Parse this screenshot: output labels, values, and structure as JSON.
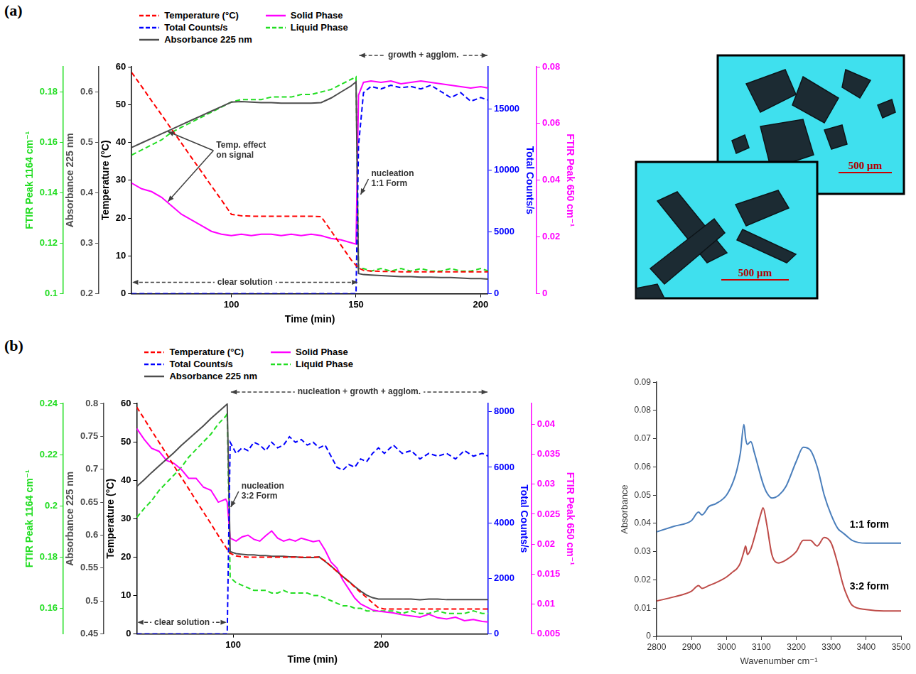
{
  "panel_labels": [
    "(a)",
    "(b)"
  ],
  "micrographs": [
    {
      "scale_bar": "500 µm"
    },
    {
      "scale_bar": "500 µm"
    }
  ],
  "chart_data": [
    {
      "type": "line",
      "legend": "top",
      "grid": false,
      "x_label": "Time (min)",
      "x": [
        60,
        64,
        68,
        72,
        76,
        80,
        84,
        88,
        92,
        96,
        100,
        104,
        108,
        112,
        116,
        120,
        124,
        128,
        132,
        136,
        140,
        144,
        148,
        150,
        151,
        153,
        156,
        160,
        164,
        168,
        172,
        176,
        180,
        184,
        188,
        192,
        196,
        200,
        203
      ],
      "xlim": [
        60,
        203
      ],
      "xticks": [
        100,
        150,
        200
      ],
      "y_label": "Temperature (°C)",
      "ylim": [
        0,
        60
      ],
      "yticks": [
        0,
        10,
        20,
        30,
        40,
        50,
        60
      ],
      "y2_label": "Total Counts/s",
      "y2lim": [
        0,
        18400
      ],
      "y2ticks": [
        0,
        5000,
        10000,
        15000
      ],
      "y3_label": "Absorbance 225 nm",
      "y3lim": [
        0.2,
        0.65
      ],
      "y3ticks": [
        0.2,
        0.3,
        0.4,
        0.5,
        0.6
      ],
      "y4_label": "FTIR Peak 1164 cm⁻¹",
      "y4lim": [
        0.1,
        0.19
      ],
      "y4ticks": [
        0.1,
        0.12,
        0.14,
        0.16,
        0.18
      ],
      "y5_label": "FTIR Peak 650 cm⁻¹",
      "y5lim": [
        0,
        0.08
      ],
      "y5ticks": [
        0,
        0.02,
        0.04,
        0.06,
        0.08
      ],
      "series": [
        {
          "name": "Temperature (°C)",
          "color": "#ff0000",
          "line_style": "dashed",
          "axis": "y",
          "values": [
            58.5,
            54.8,
            51.0,
            47.3,
            43.5,
            39.8,
            36.0,
            32.3,
            28.5,
            24.8,
            21.0,
            20.6,
            20.5,
            20.5,
            20.5,
            20.5,
            20.5,
            20.5,
            20.5,
            20.4,
            16.6,
            12.8,
            9.0,
            7.5,
            6.8,
            6.2,
            6.0,
            5.9,
            5.9,
            5.8,
            5.8,
            5.8,
            5.8,
            5.8,
            5.8,
            5.8,
            5.8,
            5.8,
            5.8
          ]
        },
        {
          "name": "Total Counts/s",
          "color": "#0000ff",
          "line_style": "dashed",
          "axis": "y2",
          "values": [
            0,
            0,
            0,
            0,
            0,
            0,
            0,
            0,
            0,
            0,
            0,
            0,
            0,
            0,
            0,
            0,
            0,
            0,
            0,
            0,
            0,
            0,
            0,
            0,
            12000,
            16300,
            16800,
            16600,
            16900,
            16700,
            16800,
            16600,
            16900,
            16400,
            15900,
            16300,
            15600,
            15900,
            15700
          ]
        },
        {
          "name": "Absorbance 225 nm",
          "color": "#4d4d4d",
          "line_style": "solid",
          "axis": "y3",
          "values": [
            0.49,
            0.499,
            0.508,
            0.517,
            0.526,
            0.535,
            0.544,
            0.553,
            0.562,
            0.571,
            0.58,
            0.581,
            0.58,
            0.579,
            0.579,
            0.578,
            0.578,
            0.578,
            0.578,
            0.579,
            0.588,
            0.6,
            0.612,
            0.62,
            0.24,
            0.238,
            0.237,
            0.236,
            0.235,
            0.234,
            0.234,
            0.233,
            0.233,
            0.232,
            0.232,
            0.231,
            0.23,
            0.23,
            0.229
          ]
        },
        {
          "name": "Solid Phase",
          "color": "#ff00ff",
          "line_style": "solid",
          "axis": "y5",
          "values": [
            0.039,
            0.037,
            0.036,
            0.034,
            0.031,
            0.028,
            0.026,
            0.024,
            0.022,
            0.021,
            0.0205,
            0.021,
            0.0205,
            0.021,
            0.021,
            0.0205,
            0.021,
            0.0205,
            0.021,
            0.0205,
            0.0195,
            0.019,
            0.018,
            0.0175,
            0.07,
            0.0745,
            0.075,
            0.0745,
            0.075,
            0.074,
            0.0745,
            0.075,
            0.0745,
            0.074,
            0.0735,
            0.073,
            0.0725,
            0.073,
            0.0725
          ]
        },
        {
          "name": "Liquid Phase",
          "color": "#22dd22",
          "line_style": "dashed",
          "axis": "y4",
          "values": [
            0.155,
            0.157,
            0.159,
            0.161,
            0.164,
            0.166,
            0.168,
            0.17,
            0.172,
            0.174,
            0.176,
            0.177,
            0.177,
            0.177,
            0.178,
            0.178,
            0.178,
            0.179,
            0.179,
            0.18,
            0.181,
            0.183,
            0.185,
            0.186,
            0.11,
            0.11,
            0.109,
            0.11,
            0.109,
            0.11,
            0.109,
            0.11,
            0.109,
            0.109,
            0.11,
            0.109,
            0.109,
            0.11,
            0.109
          ]
        }
      ],
      "annotations": [
        {
          "text": "Temp. effect on signal",
          "x": 74,
          "points_to": [
            "Absorbance 225 nm",
            "Solid Phase"
          ]
        },
        {
          "text": "clear solution",
          "x_range": [
            60,
            151
          ]
        },
        {
          "text": "nucleation 1:1 Form",
          "x": 151
        },
        {
          "text": "growth + agglom.",
          "x_range": [
            151,
            203
          ]
        }
      ]
    },
    {
      "type": "line",
      "legend": "top",
      "grid": false,
      "x_label": "Time (min)",
      "x": [
        35,
        40,
        45,
        50,
        55,
        60,
        65,
        70,
        75,
        80,
        85,
        90,
        95,
        96,
        98,
        102,
        106,
        110,
        114,
        118,
        122,
        126,
        130,
        134,
        138,
        142,
        146,
        150,
        154,
        158,
        162,
        166,
        170,
        174,
        178,
        182,
        186,
        190,
        194,
        198,
        202,
        208,
        214,
        220,
        226,
        232,
        238,
        244,
        250,
        256,
        262,
        268,
        272
      ],
      "xlim": [
        35,
        272
      ],
      "xticks": [
        100,
        200
      ],
      "y_label": "Temperature (°C)",
      "ylim": [
        0,
        60
      ],
      "yticks": [
        0,
        10,
        20,
        30,
        40,
        50,
        60
      ],
      "y2_label": "Total Counts/s",
      "y2lim": [
        0,
        8300
      ],
      "y2ticks": [
        0,
        2000,
        4000,
        6000,
        8000
      ],
      "y3_label": "Absorbance 225 nm",
      "y3lim": [
        0.45,
        0.8
      ],
      "y3ticks": [
        0.45,
        0.5,
        0.55,
        0.6,
        0.65,
        0.7,
        0.75,
        0.8
      ],
      "y4_label": "FTIR Peak 1164 cm⁻¹",
      "y4lim": [
        0.15,
        0.24
      ],
      "y4ticks": [
        0.16,
        0.18,
        0.2,
        0.22,
        0.24
      ],
      "y5_label": "FTIR Peak 650 cm⁻¹",
      "y5lim": [
        0.005,
        0.0435
      ],
      "y5ticks": [
        0.005,
        0.01,
        0.015,
        0.02,
        0.025,
        0.03,
        0.035,
        0.04
      ],
      "series": [
        {
          "name": "Temperature (°C)",
          "color": "#ff0000",
          "line_style": "dashed",
          "axis": "y",
          "values": [
            59.0,
            56.0,
            52.9,
            49.9,
            46.9,
            43.8,
            40.8,
            37.8,
            34.7,
            31.7,
            28.7,
            25.6,
            22.6,
            22.0,
            21.0,
            20.3,
            20.1,
            20.0,
            20.0,
            20.0,
            20.0,
            20.0,
            20.0,
            20.0,
            20.0,
            20.0,
            20.0,
            20.0,
            20.0,
            20.0,
            19.0,
            17.6,
            16.3,
            14.9,
            13.6,
            12.2,
            10.8,
            9.5,
            8.1,
            6.8,
            6.5,
            6.5,
            6.5,
            6.5,
            6.5,
            6.5,
            6.5,
            6.5,
            6.5,
            6.5,
            6.5,
            6.5,
            6.5
          ]
        },
        {
          "name": "Total Counts/s",
          "color": "#0000ff",
          "line_style": "dashed",
          "axis": "y2",
          "values": [
            0,
            0,
            0,
            0,
            0,
            0,
            0,
            0,
            0,
            0,
            0,
            0,
            0,
            0,
            6900,
            6500,
            6700,
            6600,
            6900,
            6800,
            6600,
            6900,
            6700,
            6800,
            7100,
            6900,
            7000,
            6800,
            6900,
            6700,
            6800,
            6400,
            6000,
            5900,
            6100,
            6000,
            6300,
            6200,
            6500,
            6700,
            6500,
            6800,
            6500,
            6600,
            6300,
            6500,
            6400,
            6500,
            6300,
            6600,
            6400,
            6500,
            6400
          ]
        },
        {
          "name": "Absorbance 225 nm",
          "color": "#4d4d4d",
          "line_style": "solid",
          "axis": "y3",
          "values": [
            0.674,
            0.684,
            0.695,
            0.705,
            0.715,
            0.725,
            0.736,
            0.746,
            0.756,
            0.766,
            0.777,
            0.787,
            0.797,
            0.799,
            0.575,
            0.572,
            0.571,
            0.57,
            0.57,
            0.569,
            0.569,
            0.568,
            0.568,
            0.568,
            0.567,
            0.567,
            0.566,
            0.566,
            0.566,
            0.567,
            0.56,
            0.553,
            0.545,
            0.537,
            0.53,
            0.522,
            0.515,
            0.509,
            0.505,
            0.503,
            0.503,
            0.503,
            0.503,
            0.503,
            0.502,
            0.503,
            0.503,
            0.502,
            0.502,
            0.502,
            0.502,
            0.502,
            0.502
          ]
        },
        {
          "name": "Solid Phase",
          "color": "#ff00ff",
          "line_style": "solid",
          "axis": "y5",
          "values": [
            0.0393,
            0.0375,
            0.036,
            0.0355,
            0.034,
            0.0335,
            0.0325,
            0.031,
            0.031,
            0.0295,
            0.029,
            0.027,
            0.0275,
            0.027,
            0.021,
            0.0205,
            0.0212,
            0.0215,
            0.0208,
            0.0205,
            0.0214,
            0.0222,
            0.021,
            0.0205,
            0.0208,
            0.0205,
            0.021,
            0.0207,
            0.0204,
            0.0206,
            0.019,
            0.017,
            0.016,
            0.014,
            0.0125,
            0.011,
            0.01,
            0.0095,
            0.009,
            0.0088,
            0.0087,
            0.0085,
            0.0082,
            0.008,
            0.0078,
            0.0083,
            0.0077,
            0.0075,
            0.0078,
            0.0072,
            0.0074,
            0.0071,
            0.007
          ]
        },
        {
          "name": "Liquid Phase",
          "color": "#22dd22",
          "line_style": "dashed",
          "axis": "y4",
          "values": [
            0.1955,
            0.199,
            0.202,
            0.206,
            0.209,
            0.212,
            0.215,
            0.219,
            0.222,
            0.225,
            0.228,
            0.232,
            0.235,
            0.236,
            0.172,
            0.17,
            0.169,
            0.168,
            0.167,
            0.167,
            0.167,
            0.166,
            0.166,
            0.167,
            0.166,
            0.166,
            0.166,
            0.166,
            0.165,
            0.165,
            0.164,
            0.163,
            0.162,
            0.161,
            0.161,
            0.16,
            0.16,
            0.159,
            0.159,
            0.159,
            0.159,
            0.159,
            0.158,
            0.159,
            0.158,
            0.158,
            0.159,
            0.158,
            0.158,
            0.158,
            0.159,
            0.158,
            0.158
          ]
        }
      ],
      "annotations": [
        {
          "text": "clear solution",
          "x_range": [
            35,
            96
          ]
        },
        {
          "text": "nucleation 3:2 Form",
          "x": 97
        },
        {
          "text": "nucleation + growth + agglom.",
          "x_range": [
            98,
            272
          ]
        }
      ]
    },
    {
      "type": "line",
      "grid": false,
      "x_label": "Wavenumber cm⁻¹",
      "y_label": "Absorbance",
      "x": [
        2800,
        2850,
        2900,
        2920,
        2930,
        2950,
        2970,
        3000,
        3020,
        3030,
        3040,
        3050,
        3055,
        3060,
        3070,
        3080,
        3100,
        3105,
        3115,
        3130,
        3150,
        3170,
        3200,
        3220,
        3240,
        3260,
        3280,
        3300,
        3320,
        3330,
        3340,
        3360,
        3400,
        3450,
        3500
      ],
      "xlim": [
        2800,
        3500
      ],
      "xticks": [
        2800,
        2900,
        3000,
        3100,
        3200,
        3300,
        3400,
        3500
      ],
      "ylim": [
        0,
        0.09
      ],
      "yticks": [
        0,
        0.01,
        0.02,
        0.03,
        0.04,
        0.05,
        0.06,
        0.07,
        0.08,
        0.09
      ],
      "series": [
        {
          "name": "1:1 form",
          "color": "#4a7ebb",
          "line_style": "solid",
          "values": [
            0.037,
            0.039,
            0.041,
            0.044,
            0.043,
            0.046,
            0.047,
            0.05,
            0.055,
            0.059,
            0.065,
            0.075,
            0.07,
            0.068,
            0.069,
            0.065,
            0.056,
            0.054,
            0.051,
            0.049,
            0.05,
            0.053,
            0.062,
            0.067,
            0.066,
            0.06,
            0.05,
            0.043,
            0.038,
            0.037,
            0.036,
            0.034,
            0.033,
            0.033,
            0.033
          ]
        },
        {
          "name": "3:2 form",
          "color": "#be4b48",
          "line_style": "solid",
          "values": [
            0.0125,
            0.014,
            0.016,
            0.018,
            0.017,
            0.018,
            0.019,
            0.021,
            0.023,
            0.024,
            0.026,
            0.03,
            0.032,
            0.029,
            0.031,
            0.035,
            0.044,
            0.0455,
            0.04,
            0.029,
            0.026,
            0.027,
            0.03,
            0.034,
            0.034,
            0.032,
            0.035,
            0.033,
            0.025,
            0.02,
            0.016,
            0.011,
            0.0095,
            0.009,
            0.009
          ]
        }
      ]
    }
  ]
}
